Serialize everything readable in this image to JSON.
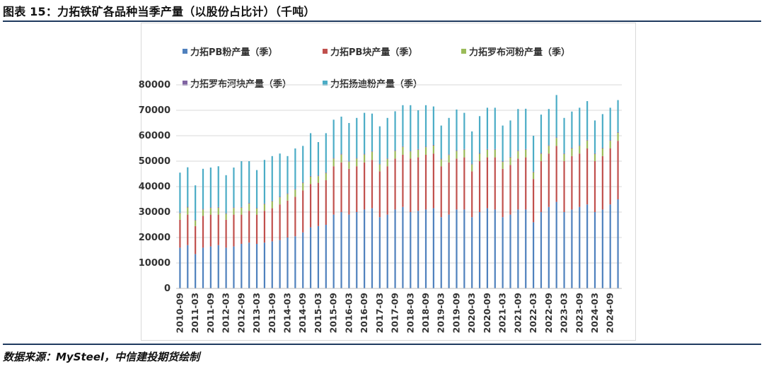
{
  "title": "图表 15：力拓铁矿各品种当季产量（以股份占比计）（千吨）",
  "source": "数据来源：MySteel，中信建投期货绘制",
  "colors": {
    "rule": "#1f3a5f",
    "grid": "#d9d9d9"
  },
  "chart_data": {
    "type": "bar",
    "stacked": true,
    "ylim": [
      0,
      80000
    ],
    "yticks": [
      "0",
      "10000",
      "20000",
      "30000",
      "40000",
      "50000",
      "60000",
      "70000",
      "80000"
    ],
    "grid": true,
    "legend_position": "top",
    "categories": [
      "2010-09",
      "2010-12",
      "2011-03",
      "2011-06",
      "2011-09",
      "2011-12",
      "2012-03",
      "2012-06",
      "2012-09",
      "2012-12",
      "2013-03",
      "2013-06",
      "2013-09",
      "2013-12",
      "2014-03",
      "2014-06",
      "2014-09",
      "2014-12",
      "2015-03",
      "2015-06",
      "2015-09",
      "2015-12",
      "2016-03",
      "2016-06",
      "2016-09",
      "2016-12",
      "2017-03",
      "2017-06",
      "2017-09",
      "2017-12",
      "2018-03",
      "2018-06",
      "2018-09",
      "2018-12",
      "2019-03",
      "2019-06",
      "2019-09",
      "2019-12",
      "2020-03",
      "2020-06",
      "2020-09",
      "2020-12",
      "2021-03",
      "2021-06",
      "2021-09",
      "2021-12",
      "2022-03",
      "2022-06",
      "2022-09",
      "2022-12",
      "2023-03",
      "2023-06",
      "2023-09",
      "2023-12",
      "2024-03",
      "2024-06",
      "2024-09",
      "2024-12"
    ],
    "xtick_labels": [
      "2010-09",
      "2011-03",
      "2011-09",
      "2012-03",
      "2012-09",
      "2013-03",
      "2013-09",
      "2014-03",
      "2014-09",
      "2015-03",
      "2015-09",
      "2016-03",
      "2016-09",
      "2017-03",
      "2017-09",
      "2018-03",
      "2018-09",
      "2019-03",
      "2019-09",
      "2020-03",
      "2020-09",
      "2021-03",
      "2021-09",
      "2022-03",
      "2022-09",
      "2023-03",
      "2023-09",
      "2024-03",
      "2024-09"
    ],
    "series": [
      {
        "name": "力拓PB粉产量（季）",
        "color": "#4f81bd",
        "values": [
          16000,
          17000,
          13500,
          16000,
          16500,
          17000,
          16000,
          16500,
          17500,
          18000,
          17500,
          18000,
          18500,
          19000,
          20000,
          20500,
          22000,
          24000,
          24500,
          25000,
          29000,
          30000,
          29000,
          30000,
          31000,
          31500,
          28000,
          29000,
          31000,
          32000,
          30000,
          30500,
          31000,
          31500,
          28000,
          29000,
          31000,
          31000,
          28000,
          30000,
          31500,
          31000,
          28000,
          29000,
          31000,
          31000,
          26000,
          30000,
          32000,
          34000,
          30000,
          31000,
          32000,
          33000,
          30000,
          31000,
          33000,
          35000
        ]
      },
      {
        "name": "力拓PB块产量（季）",
        "color": "#c0504d",
        "values": [
          11000,
          12000,
          11000,
          12500,
          12500,
          12000,
          11000,
          12500,
          11500,
          12500,
          11500,
          12500,
          13000,
          14000,
          14500,
          15500,
          16500,
          17000,
          17000,
          17500,
          19000,
          19500,
          18000,
          18000,
          18500,
          19000,
          18000,
          19000,
          20000,
          20500,
          21000,
          21000,
          21500,
          21500,
          20000,
          20500,
          20000,
          20500,
          18000,
          20000,
          20000,
          20500,
          19000,
          19500,
          20000,
          20500,
          17000,
          20000,
          21000,
          22000,
          20000,
          21000,
          21000,
          22000,
          20000,
          21000,
          22000,
          23000
        ]
      },
      {
        "name": "力拓罗布河粉产量（季）",
        "color": "#9bbb59",
        "values": [
          2500,
          2800,
          2200,
          2500,
          2600,
          2700,
          2300,
          2600,
          2700,
          2800,
          2400,
          2600,
          2700,
          2800,
          2600,
          2800,
          2900,
          2900,
          2600,
          2800,
          3000,
          3100,
          2800,
          3000,
          3100,
          3200,
          2700,
          2900,
          3000,
          3100,
          2800,
          3000,
          3000,
          3100,
          2700,
          2900,
          3000,
          3000,
          2700,
          2900,
          3000,
          3000,
          2700,
          2900,
          3000,
          3000,
          2600,
          2900,
          3000,
          3100,
          2800,
          3000,
          3000,
          3100,
          2800,
          3000,
          3000,
          3100
        ]
      },
      {
        "name": "力拓罗布河块产量（季）",
        "color": "#8064a2",
        "values": [
          300,
          300,
          250,
          300,
          300,
          300,
          250,
          300,
          300,
          300,
          250,
          300,
          300,
          300,
          300,
          300,
          300,
          300,
          300,
          300,
          300,
          300,
          300,
          300,
          300,
          300,
          300,
          300,
          300,
          300,
          300,
          300,
          300,
          300,
          300,
          300,
          300,
          300,
          300,
          300,
          300,
          300,
          300,
          300,
          300,
          300,
          300,
          300,
          300,
          300,
          300,
          300,
          300,
          300,
          300,
          300,
          300,
          300
        ]
      },
      {
        "name": "力拓扬迪粉产量（季）",
        "color": "#4bacc6",
        "values": [
          15700,
          15500,
          13550,
          15700,
          15600,
          16000,
          14950,
          15600,
          18000,
          16400,
          14850,
          17100,
          17500,
          16900,
          14600,
          15900,
          14300,
          16800,
          13100,
          15400,
          15000,
          14600,
          14900,
          15700,
          16100,
          14700,
          14700,
          15800,
          15300,
          16100,
          17900,
          15200,
          16200,
          15100,
          13000,
          14300,
          16000,
          14200,
          12700,
          14500,
          16200,
          16200,
          14000,
          14300,
          16200,
          15800,
          14100,
          15100,
          14200,
          16600,
          13900,
          14200,
          14700,
          15200,
          12900,
          13200,
          12700,
          12600
        ]
      }
    ]
  }
}
